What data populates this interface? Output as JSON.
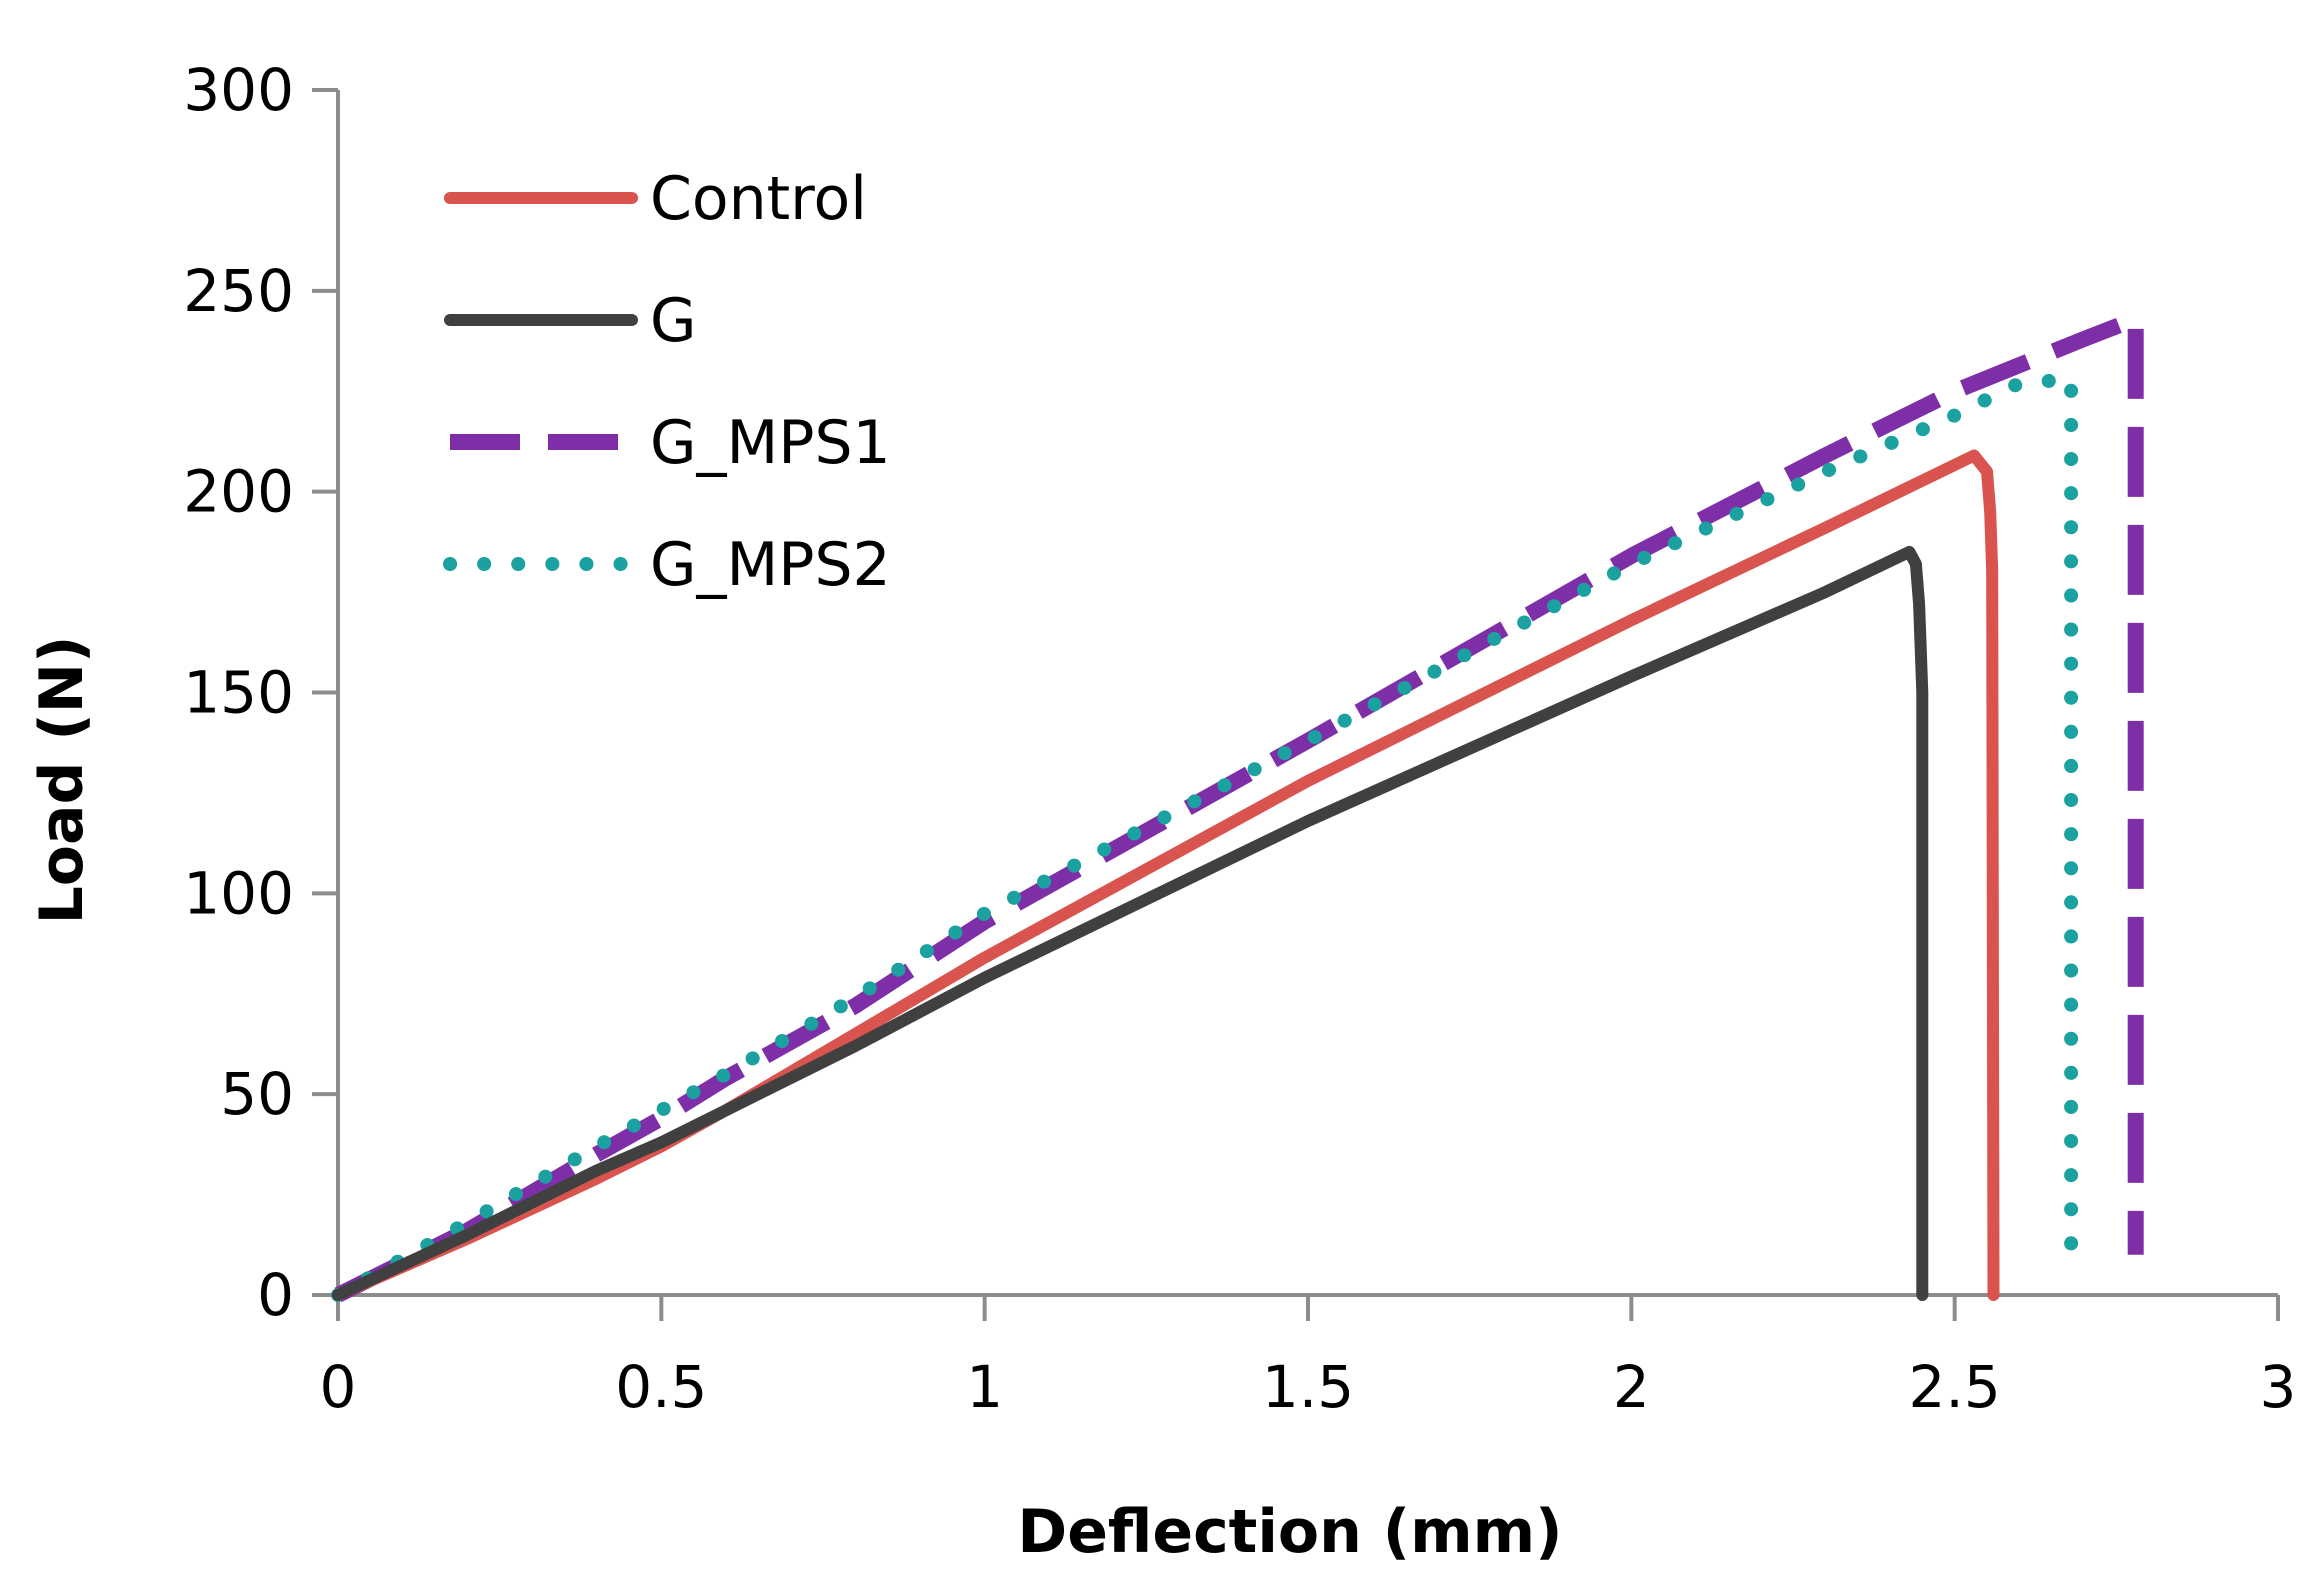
{
  "chart_data": {
    "type": "line",
    "title": "",
    "xlabel": "Deflection (mm)",
    "ylabel": "Load (N)",
    "xlim": [
      0,
      3
    ],
    "ylim": [
      0,
      300
    ],
    "xticks": [
      0,
      0.5,
      1,
      1.5,
      2,
      2.5,
      3
    ],
    "yticks": [
      0,
      50,
      100,
      150,
      200,
      250,
      300
    ],
    "xtick_labels": [
      "0",
      "0.5",
      "1",
      "1.5",
      "2",
      "2.5",
      "3"
    ],
    "ytick_labels": [
      "0",
      "50",
      "100",
      "150",
      "200",
      "250",
      "300"
    ],
    "grid": false,
    "legend_position": "top-left",
    "series": [
      {
        "name": "Control",
        "color": "#D9534F",
        "style": "solid",
        "points": [
          [
            0,
            0
          ],
          [
            0.2,
            14
          ],
          [
            0.4,
            29
          ],
          [
            0.5,
            37
          ],
          [
            0.6,
            46
          ],
          [
            0.8,
            65
          ],
          [
            1.0,
            84
          ],
          [
            1.5,
            128
          ],
          [
            2.0,
            168
          ],
          [
            2.3,
            191
          ],
          [
            2.53,
            209
          ],
          [
            2.55,
            205
          ],
          [
            2.555,
            195
          ],
          [
            2.558,
            180
          ],
          [
            2.56,
            0
          ]
        ]
      },
      {
        "name": "G",
        "color": "#404040",
        "style": "solid",
        "points": [
          [
            0,
            0
          ],
          [
            0.2,
            15
          ],
          [
            0.4,
            31
          ],
          [
            0.5,
            38
          ],
          [
            0.6,
            46
          ],
          [
            0.8,
            62
          ],
          [
            1.0,
            79
          ],
          [
            1.5,
            118
          ],
          [
            2.0,
            154
          ],
          [
            2.3,
            175
          ],
          [
            2.43,
            185
          ],
          [
            2.44,
            182
          ],
          [
            2.445,
            172
          ],
          [
            2.45,
            150
          ],
          [
            2.45,
            0
          ]
        ]
      },
      {
        "name": "G_MPS1",
        "color": "#7E2FA8",
        "style": "dashed",
        "points": [
          [
            0,
            0
          ],
          [
            0.2,
            16
          ],
          [
            0.4,
            35
          ],
          [
            0.5,
            44
          ],
          [
            0.6,
            54
          ],
          [
            0.8,
            72
          ],
          [
            1.0,
            93
          ],
          [
            1.5,
            138
          ],
          [
            2.0,
            184
          ],
          [
            2.3,
            209
          ],
          [
            2.5,
            225
          ],
          [
            2.7,
            238
          ],
          [
            2.78,
            243
          ],
          [
            2.78,
            10
          ]
        ]
      },
      {
        "name": "G_MPS2",
        "color": "#1AA1A0",
        "style": "dotted",
        "points": [
          [
            0,
            0
          ],
          [
            0.2,
            18
          ],
          [
            0.4,
            37
          ],
          [
            0.5,
            46
          ],
          [
            0.6,
            55
          ],
          [
            0.8,
            74
          ],
          [
            1.0,
            95
          ],
          [
            1.5,
            138
          ],
          [
            2.0,
            182
          ],
          [
            2.3,
            205
          ],
          [
            2.5,
            219
          ],
          [
            2.6,
            227
          ],
          [
            2.68,
            228
          ],
          [
            2.68,
            5
          ]
        ]
      }
    ]
  }
}
